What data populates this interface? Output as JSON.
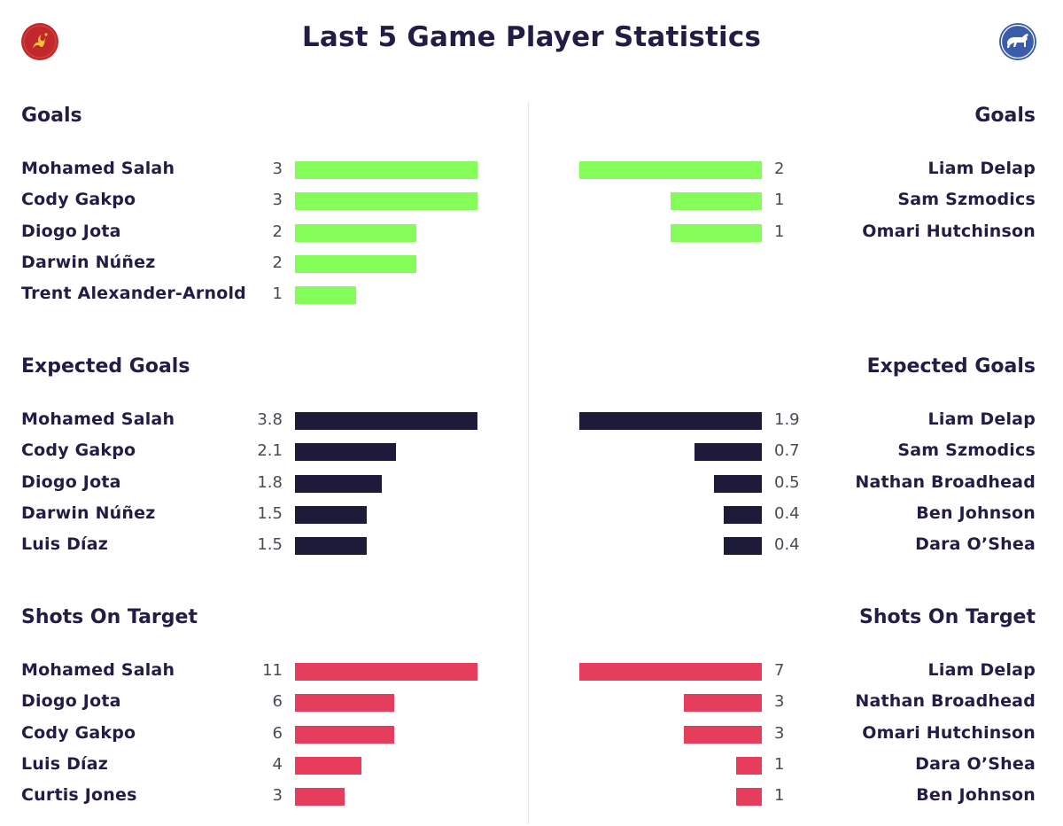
{
  "title": "Last 5 Game Player Statistics",
  "icons": {
    "left_logo": "liverpool-crest-icon",
    "right_logo": "ipswich-horse-crest-icon"
  },
  "colors": {
    "goals": "#84fc5a",
    "xg": "#1d1a3a",
    "sot": "#e73d5d",
    "text": "#221d45"
  },
  "chart_data": [
    {
      "type": "bar",
      "title": "Goals",
      "team": "left",
      "categories": [
        "Mohamed Salah",
        "Cody Gakpo",
        "Diogo Jota",
        "Darwin Núñez",
        "Trent Alexander-Arnold"
      ],
      "values": [
        3,
        3,
        2,
        2,
        1
      ],
      "labels": [
        "3",
        "3",
        "2",
        "2",
        "1"
      ],
      "max": 3
    },
    {
      "type": "bar",
      "title": "Goals",
      "team": "right",
      "categories": [
        "Liam Delap",
        "Sam Szmodics",
        "Omari Hutchinson"
      ],
      "values": [
        2,
        1,
        1
      ],
      "labels": [
        "2",
        "1",
        "1"
      ],
      "max": 2
    },
    {
      "type": "bar",
      "title": "Expected Goals",
      "team": "left",
      "categories": [
        "Mohamed Salah",
        "Cody Gakpo",
        "Diogo Jota",
        "Darwin Núñez",
        "Luis Díaz"
      ],
      "values": [
        3.8,
        2.1,
        1.8,
        1.5,
        1.5
      ],
      "labels": [
        "3.8",
        "2.1",
        "1.8",
        "1.5",
        "1.5"
      ],
      "max": 3.8
    },
    {
      "type": "bar",
      "title": "Expected Goals",
      "team": "right",
      "categories": [
        "Liam Delap",
        "Sam Szmodics",
        "Nathan Broadhead",
        "Ben Johnson",
        "Dara O’Shea"
      ],
      "values": [
        1.9,
        0.7,
        0.5,
        0.4,
        0.4
      ],
      "labels": [
        "1.9",
        "0.7",
        "0.5",
        "0.4",
        "0.4"
      ],
      "max": 1.9
    },
    {
      "type": "bar",
      "title": "Shots On Target",
      "team": "left",
      "categories": [
        "Mohamed Salah",
        "Diogo Jota",
        "Cody Gakpo",
        "Luis Díaz",
        "Curtis Jones"
      ],
      "values": [
        11,
        6,
        6,
        4,
        3
      ],
      "labels": [
        "11",
        "6",
        "6",
        "4",
        "3"
      ],
      "max": 11
    },
    {
      "type": "bar",
      "title": "Shots On Target",
      "team": "right",
      "categories": [
        "Liam Delap",
        "Nathan Broadhead",
        "Omari Hutchinson",
        "Dara O’Shea",
        "Ben Johnson"
      ],
      "values": [
        7,
        3,
        3,
        1,
        1
      ],
      "labels": [
        "7",
        "3",
        "3",
        "1",
        "1"
      ],
      "max": 7
    }
  ]
}
